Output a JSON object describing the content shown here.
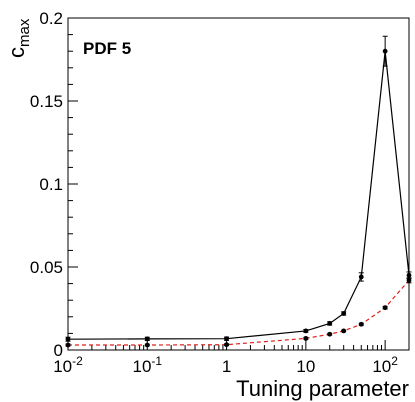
{
  "chart_data": {
    "type": "line",
    "title": "",
    "annotation": "PDF 5",
    "xlabel": "Tuning parameter",
    "ylabel": "c",
    "ylabel_sub": "max",
    "xscale": "log",
    "xlim": [
      0.01,
      200
    ],
    "ylim": [
      0,
      0.2
    ],
    "grid": false,
    "legend": "none",
    "x_ticks": [
      {
        "value": 0.01,
        "base": "10",
        "exp": "-2"
      },
      {
        "value": 0.1,
        "base": "10",
        "exp": "-1"
      },
      {
        "value": 1,
        "base": "1",
        "exp": ""
      },
      {
        "value": 10,
        "base": "10",
        "exp": ""
      },
      {
        "value": 100,
        "base": "10",
        "exp": "2"
      }
    ],
    "y_ticks": [
      {
        "value": 0,
        "label": "0"
      },
      {
        "value": 0.05,
        "label": "0.05"
      },
      {
        "value": 0.1,
        "label": "0.1"
      },
      {
        "value": 0.15,
        "label": "0.15"
      },
      {
        "value": 0.2,
        "label": "0.2"
      }
    ],
    "series": [
      {
        "style": "solid",
        "color": "#000000",
        "points": [
          {
            "x": 0.01,
            "y": 0.0065,
            "err": 0.0012
          },
          {
            "x": 0.1,
            "y": 0.0067,
            "err": 0.001
          },
          {
            "x": 1,
            "y": 0.0068,
            "err": 0.001
          },
          {
            "x": 10,
            "y": 0.0115,
            "err": 0.0008
          },
          {
            "x": 20,
            "y": 0.016,
            "err": 0.001
          },
          {
            "x": 30,
            "y": 0.022,
            "err": 0.001
          },
          {
            "x": 50,
            "y": 0.044,
            "err": 0.0025
          },
          {
            "x": 100,
            "y": 0.18,
            "err": 0.009
          },
          {
            "x": 200,
            "y": 0.045,
            "err": 0.002
          }
        ]
      },
      {
        "style": "dashed",
        "color": "#e0201b",
        "points": [
          {
            "x": 0.01,
            "y": 0.003,
            "err": 0.0006
          },
          {
            "x": 0.1,
            "y": 0.003,
            "err": 0.0005
          },
          {
            "x": 1,
            "y": 0.0032,
            "err": 0.0005
          },
          {
            "x": 10,
            "y": 0.007,
            "err": 0.0005
          },
          {
            "x": 20,
            "y": 0.0095,
            "err": 0.0005
          },
          {
            "x": 30,
            "y": 0.0115,
            "err": 0.0005
          },
          {
            "x": 50,
            "y": 0.0155,
            "err": 0.0006
          },
          {
            "x": 100,
            "y": 0.0255,
            "err": 0.0008
          },
          {
            "x": 200,
            "y": 0.042,
            "err": 0.0015
          }
        ]
      }
    ]
  }
}
